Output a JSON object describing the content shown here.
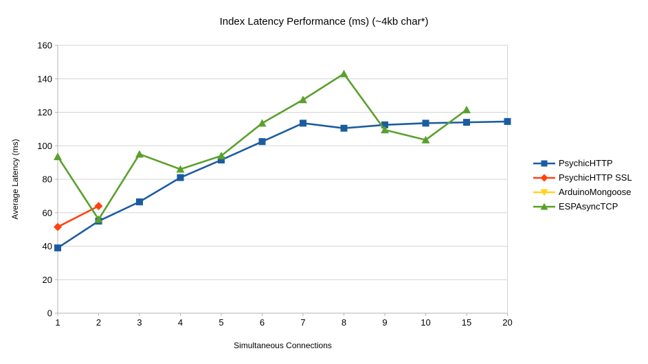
{
  "chart_data": {
    "type": "line",
    "title": "Index Latency Performance (ms) (~4kb char*)",
    "xlabel": "Simultaneous Connections",
    "ylabel": "Average Latency (ms)",
    "categories": [
      "1",
      "2",
      "3",
      "4",
      "5",
      "6",
      "7",
      "8",
      "9",
      "10",
      "15",
      "20"
    ],
    "ylim": [
      0,
      160
    ],
    "ytick_step": 20,
    "ytick_labels": [
      "0",
      "20",
      "40",
      "60",
      "80",
      "100",
      "120",
      "140",
      "160"
    ],
    "grid": true,
    "legend_position": "right",
    "series": [
      {
        "name": "PsychicHTTP",
        "color": "#1B5CA0",
        "marker": "square",
        "values": [
          39,
          55,
          66.5,
          81,
          91.5,
          102.5,
          113.5,
          110.5,
          112.5,
          113.5,
          114,
          114.5
        ]
      },
      {
        "name": "PsychicHTTP SSL",
        "color": "#FF420E",
        "marker": "diamond",
        "values": [
          51.5,
          64,
          null,
          null,
          null,
          null,
          null,
          null,
          null,
          null,
          null,
          null
        ]
      },
      {
        "name": "ArduinoMongoose",
        "color": "#FFD320",
        "marker": "triangle-down",
        "values": [
          null,
          null,
          null,
          null,
          null,
          null,
          null,
          null,
          null,
          null,
          null,
          null
        ]
      },
      {
        "name": "ESPAsyncTCP",
        "color": "#5AA02C",
        "marker": "triangle-up",
        "values": [
          93.5,
          56,
          95,
          86,
          94,
          113.5,
          127.5,
          143,
          109.5,
          103.5,
          121.5,
          null
        ]
      }
    ],
    "colors": {
      "gridline": "#D3D3D3",
      "axis": "#B3B3B3",
      "text": "#000000"
    }
  }
}
